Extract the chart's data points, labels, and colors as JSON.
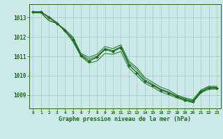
{
  "title": "Graphe pression niveau de la mer (hPa)",
  "background_color": "#cce8e8",
  "grid_color": "#aacece",
  "line_color": "#1a6b1a",
  "xlim": [
    -0.5,
    23.5
  ],
  "ylim": [
    1008.3,
    1013.7
  ],
  "yticks": [
    1009,
    1010,
    1011,
    1012,
    1013
  ],
  "xticks": [
    0,
    1,
    2,
    3,
    4,
    5,
    6,
    7,
    8,
    9,
    10,
    11,
    12,
    13,
    14,
    15,
    16,
    17,
    18,
    19,
    20,
    21,
    22,
    23
  ],
  "series": [
    [
      1013.3,
      1013.3,
      1013.0,
      1012.7,
      1012.35,
      1011.85,
      1011.05,
      1010.75,
      1010.95,
      1011.35,
      1011.25,
      1011.45,
      1010.55,
      1010.15,
      1009.7,
      1009.5,
      1009.25,
      1009.1,
      1008.9,
      1008.75,
      1008.65,
      1009.15,
      1009.35,
      1009.35
    ],
    [
      1013.3,
      1013.3,
      1013.05,
      1012.75,
      1012.3,
      1011.75,
      1011.0,
      1010.65,
      1010.75,
      1011.15,
      1011.1,
      1011.25,
      1010.4,
      1010.0,
      1009.6,
      1009.4,
      1009.15,
      1009.0,
      1008.85,
      1008.7,
      1008.6,
      1009.1,
      1009.3,
      1009.3
    ],
    [
      1013.25,
      1013.25,
      1012.85,
      1012.7,
      1012.4,
      1012.0,
      1011.15,
      1010.95,
      1011.1,
      1011.5,
      1011.4,
      1011.6,
      1010.75,
      1010.4,
      1009.9,
      1009.65,
      1009.4,
      1009.25,
      1009.0,
      1008.85,
      1008.75,
      1009.25,
      1009.45,
      1009.45
    ],
    [
      1013.25,
      1013.25,
      1012.85,
      1012.7,
      1012.3,
      1011.95,
      1011.1,
      1010.85,
      1011.0,
      1011.4,
      1011.3,
      1011.5,
      1010.65,
      1010.3,
      1009.8,
      1009.55,
      1009.3,
      1009.15,
      1008.95,
      1008.8,
      1008.7,
      1009.2,
      1009.4,
      1009.4
    ]
  ],
  "marker_data": [
    1013.3,
    1013.3,
    1013.0,
    1012.7,
    1012.35,
    1011.85,
    1011.05,
    1010.75,
    1010.95,
    1011.35,
    1011.25,
    1011.45,
    1010.55,
    1010.15,
    1009.7,
    1009.5,
    1009.25,
    1009.1,
    1008.9,
    1008.75,
    1008.65,
    1009.15,
    1009.35,
    1009.35
  ],
  "figsize": [
    3.2,
    2.0
  ],
  "dpi": 100
}
